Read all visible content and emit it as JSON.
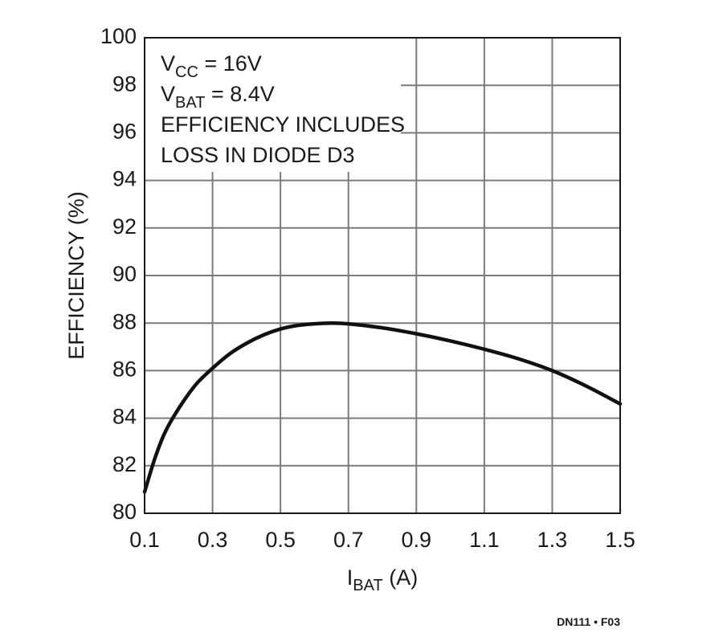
{
  "chart_data": {
    "type": "line",
    "title": "",
    "xlabel": {
      "main": "I",
      "sub": "BAT",
      "unit": " (A)"
    },
    "ylabel": "EFFICIENCY (%)",
    "xlim": [
      0.1,
      1.5
    ],
    "ylim": [
      80,
      100
    ],
    "x_ticks": [
      0.1,
      0.3,
      0.5,
      0.7,
      0.9,
      1.1,
      1.3,
      1.5
    ],
    "x_tick_labels": [
      "0.1",
      "0.3",
      "0.5",
      "0.7",
      "0.9",
      "1.1",
      "1.3",
      "1.5"
    ],
    "y_ticks": [
      80,
      82,
      84,
      86,
      88,
      90,
      92,
      94,
      96,
      98,
      100
    ],
    "y_tick_labels": [
      "80",
      "82",
      "84",
      "86",
      "88",
      "90",
      "92",
      "94",
      "96",
      "98",
      "100"
    ],
    "grid": true,
    "legend": "none",
    "series": [
      {
        "color": "#111111",
        "x": [
          0.1,
          0.13,
          0.16,
          0.2,
          0.25,
          0.3,
          0.35,
          0.4,
          0.45,
          0.5,
          0.55,
          0.6,
          0.65,
          0.7,
          0.8,
          0.9,
          1.0,
          1.1,
          1.2,
          1.3,
          1.4,
          1.5
        ],
        "y": [
          80.9,
          82.3,
          83.4,
          84.4,
          85.4,
          86.1,
          86.7,
          87.15,
          87.5,
          87.75,
          87.9,
          87.97,
          88.0,
          87.97,
          87.8,
          87.55,
          87.25,
          86.9,
          86.5,
          86.0,
          85.35,
          84.6
        ]
      }
    ],
    "annotations": [
      {
        "parts": [
          {
            "text": "V"
          },
          {
            "text": "CC",
            "sub": true
          },
          {
            "text": " = 16V"
          }
        ]
      },
      {
        "parts": [
          {
            "text": "V"
          },
          {
            "text": "BAT",
            "sub": true
          },
          {
            "text": " = 8.4V"
          }
        ]
      },
      {
        "parts": [
          {
            "text": "EFFICIENCY INCLUDES"
          }
        ]
      },
      {
        "parts": [
          {
            "text": "LOSS IN DIODE D3"
          }
        ]
      }
    ],
    "figure_id": "DN111 • F03"
  }
}
